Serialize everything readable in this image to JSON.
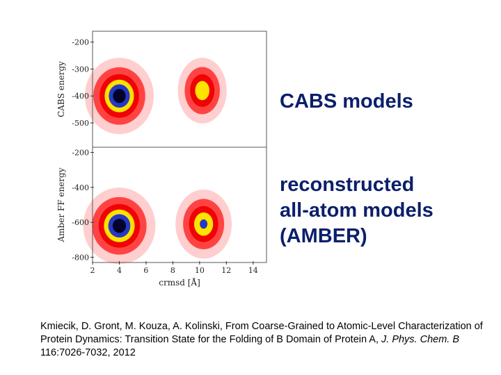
{
  "labels": {
    "panel_top": "CABS models",
    "panel_bottom_lines": [
      "reconstructed",
      "all-atom models",
      "(AMBER)"
    ]
  },
  "citation": {
    "text_before": "Kmiecik, D. Gront, M. Kouza, A. Kolinski, From Coarse-Grained to Atomic-Level Characterization of Protein Dynamics: Transition State for the Folding of B Domain of Protein A, ",
    "journal": "J. Phys. Chem. B",
    "text_after": " 116:7026-7032, 2012"
  },
  "chart_data": [
    {
      "type": "heatmap",
      "title": "",
      "xlabel": "",
      "ylabel": "CABS energy",
      "xlim": [
        2,
        15
      ],
      "ylim": [
        -590,
        -160
      ],
      "yticks": [
        -200,
        -300,
        -400,
        -500
      ],
      "colorscale": [
        "#ffffff",
        "#ffc6c6",
        "#ff3b3b",
        "#ee0000",
        "#ffee00",
        "#1a2fd0",
        "#000022"
      ],
      "density_peaks": [
        {
          "x": 4.0,
          "y": -400,
          "sx": 1.0,
          "sy": 55,
          "weight": 1.0
        },
        {
          "x": 10.2,
          "y": -380,
          "sx": 0.75,
          "sy": 50,
          "weight": 0.8
        }
      ]
    },
    {
      "type": "heatmap",
      "title": "",
      "xlabel": "crmsd [Å]",
      "ylabel": "Amber FF energy",
      "xlim": [
        2,
        15
      ],
      "ylim": [
        -830,
        -170
      ],
      "xticks": [
        2,
        4,
        6,
        8,
        10,
        12,
        14
      ],
      "yticks": [
        -200,
        -400,
        -600,
        -800
      ],
      "colorscale": [
        "#ffffff",
        "#ffc6c6",
        "#ff3b3b",
        "#ee0000",
        "#ffee00",
        "#1a2fd0",
        "#000022"
      ],
      "density_peaks": [
        {
          "x": 4.0,
          "y": -620,
          "sx": 1.05,
          "sy": 85,
          "weight": 1.0
        },
        {
          "x": 10.3,
          "y": -610,
          "sx": 0.85,
          "sy": 80,
          "weight": 0.85
        }
      ]
    }
  ]
}
